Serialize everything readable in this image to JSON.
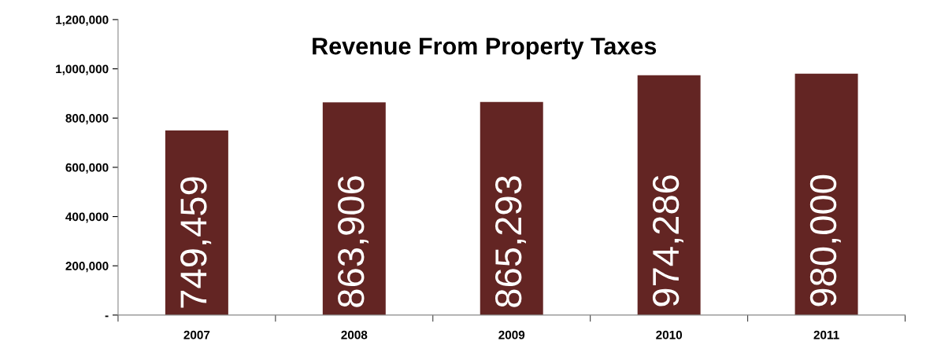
{
  "chart_data": {
    "type": "bar",
    "title": "Revenue From Property Taxes",
    "categories": [
      "2007",
      "2008",
      "2009",
      "2010",
      "2011"
    ],
    "values": [
      749459,
      863906,
      865293,
      974286,
      980000
    ],
    "value_labels": [
      "749,459",
      "863,906",
      "865,293",
      "974,286",
      "980,000"
    ],
    "color": "#632523",
    "ylim": [
      0,
      1200000
    ],
    "yticks": [
      {
        "value": 0,
        "label": "-"
      },
      {
        "value": 200000,
        "label": "200,000"
      },
      {
        "value": 400000,
        "label": "400,000"
      },
      {
        "value": 600000,
        "label": "600,000"
      },
      {
        "value": 800000,
        "label": "800,000"
      },
      {
        "value": 1000000,
        "label": "1,000,000"
      },
      {
        "value": 1200000,
        "label": "1,200,000"
      }
    ],
    "grid": false,
    "legend": false
  }
}
